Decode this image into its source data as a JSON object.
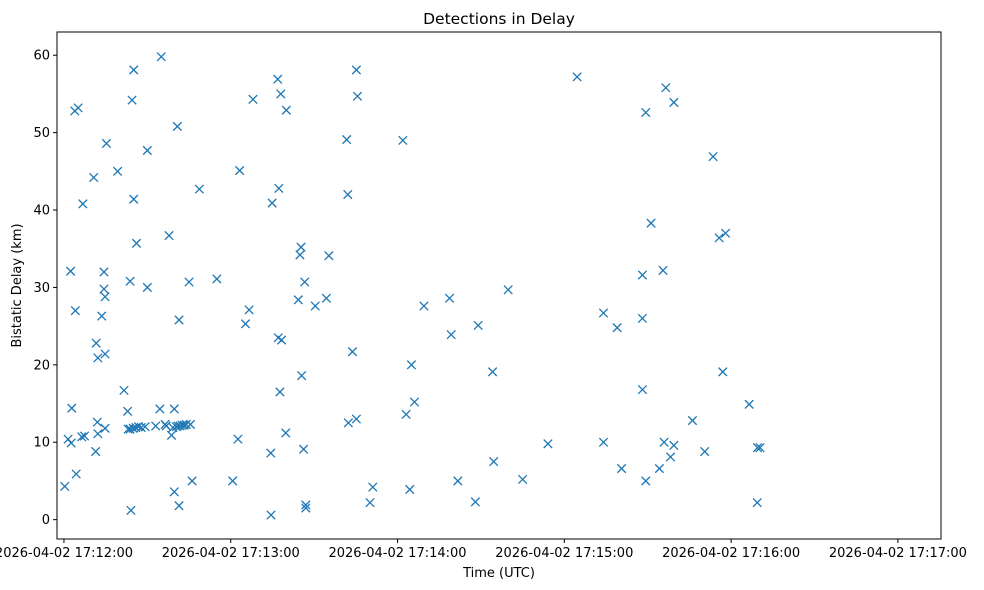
{
  "chart_data": {
    "type": "scatter",
    "title": "Detections in Delay",
    "xlabel": "Time (UTC)",
    "ylabel": "Bistatic Delay (km)",
    "marker": "x",
    "color": "#1f77b4",
    "grid": false,
    "x_ticks": [
      "2026-04-02 17:12:00",
      "2026-04-02 17:13:00",
      "2026-04-02 17:14:00",
      "2026-04-02 17:15:00",
      "2026-04-02 17:16:00",
      "2026-04-02 17:17:00"
    ],
    "x_range": [
      "2026-04-02 17:11:57.5",
      "2026-04-02 17:17:15.5"
    ],
    "ylim": [
      -2.5,
      63.0
    ],
    "yticks": [
      0,
      10,
      20,
      30,
      40,
      50,
      60
    ],
    "series": [
      {
        "points": [
          [
            "2026-04-02 17:12:00.3",
            4.3
          ],
          [
            "2026-04-02 17:12:01.5",
            10.4
          ],
          [
            "2026-04-02 17:12:02.6",
            9.9
          ],
          [
            "2026-04-02 17:12:04.1",
            27.0
          ],
          [
            "2026-04-02 17:12:03.9",
            52.8
          ],
          [
            "2026-04-02 17:12:05.1",
            53.2
          ],
          [
            "2026-04-02 17:12:04.4",
            5.9
          ],
          [
            "2026-04-02 17:12:02.4",
            32.1
          ],
          [
            "2026-04-02 17:12:02.8",
            14.4
          ],
          [
            "2026-04-02 17:12:07.4",
            10.8
          ],
          [
            "2026-04-02 17:12:06.4",
            10.7
          ],
          [
            "2026-04-02 17:12:06.8",
            40.8
          ],
          [
            "2026-04-02 17:12:10.7",
            44.2
          ],
          [
            "2026-04-02 17:12:11.6",
            22.8
          ],
          [
            "2026-04-02 17:12:12.0",
            12.6
          ],
          [
            "2026-04-02 17:12:12.2",
            20.9
          ],
          [
            "2026-04-02 17:12:12.2",
            11.1
          ],
          [
            "2026-04-02 17:12:11.4",
            8.8
          ],
          [
            "2026-04-02 17:12:13.6",
            26.3
          ],
          [
            "2026-04-02 17:12:14.4",
            32.0
          ],
          [
            "2026-04-02 17:12:14.4",
            29.8
          ],
          [
            "2026-04-02 17:12:14.8",
            28.8
          ],
          [
            "2026-04-02 17:12:14.8",
            21.4
          ],
          [
            "2026-04-02 17:12:14.8",
            11.8
          ],
          [
            "2026-04-02 17:12:15.3",
            48.6
          ],
          [
            "2026-04-02 17:12:19.3",
            45.0
          ],
          [
            "2026-04-02 17:12:21.6",
            16.7
          ],
          [
            "2026-04-02 17:12:22.9",
            14.0
          ],
          [
            "2026-04-02 17:12:23.1",
            11.7
          ],
          [
            "2026-04-02 17:12:23.8",
            11.7
          ],
          [
            "2026-04-02 17:12:24.1",
            1.2
          ],
          [
            "2026-04-02 17:12:23.8",
            30.8
          ],
          [
            "2026-04-02 17:12:24.5",
            54.2
          ],
          [
            "2026-04-02 17:12:25.1",
            58.1
          ],
          [
            "2026-04-02 17:12:25.1",
            41.4
          ],
          [
            "2026-04-02 17:12:26.1",
            35.7
          ],
          [
            "2026-04-02 17:12:24.9",
            11.8
          ],
          [
            "2026-04-02 17:12:25.9",
            11.9
          ],
          [
            "2026-04-02 17:12:26.8",
            12.0
          ],
          [
            "2026-04-02 17:12:27.8",
            11.9
          ],
          [
            "2026-04-02 17:12:29.2",
            12.0
          ],
          [
            "2026-04-02 17:12:30.0",
            47.7
          ],
          [
            "2026-04-02 17:12:30.0",
            30.0
          ],
          [
            "2026-04-02 17:12:33.0",
            12.1
          ],
          [
            "2026-04-02 17:12:34.5",
            14.3
          ],
          [
            "2026-04-02 17:12:35.0",
            59.8
          ],
          [
            "2026-04-02 17:12:36.4",
            12.3
          ],
          [
            "2026-04-02 17:12:36.8",
            12.1
          ],
          [
            "2026-04-02 17:12:37.8",
            36.7
          ],
          [
            "2026-04-02 17:12:38.7",
            10.9
          ],
          [
            "2026-04-02 17:12:39.2",
            11.9
          ],
          [
            "2026-04-02 17:12:39.7",
            14.3
          ],
          [
            "2026-04-02 17:12:39.7",
            3.6
          ],
          [
            "2026-04-02 17:12:40.4",
            12.0
          ],
          [
            "2026-04-02 17:12:41.0",
            12.1
          ],
          [
            "2026-04-02 17:12:41.8",
            12.1
          ],
          [
            "2026-04-02 17:12:42.5",
            12.2
          ],
          [
            "2026-04-02 17:12:43.3",
            12.2
          ],
          [
            "2026-04-02 17:12:44.0",
            12.3
          ],
          [
            "2026-04-02 17:12:45.5",
            12.3
          ],
          [
            "2026-04-02 17:12:40.8",
            50.8
          ],
          [
            "2026-04-02 17:12:41.4",
            25.8
          ],
          [
            "2026-04-02 17:12:41.4",
            1.8
          ],
          [
            "2026-04-02 17:12:45.0",
            30.7
          ],
          [
            "2026-04-02 17:12:46.1",
            5.0
          ],
          [
            "2026-04-02 17:12:48.7",
            42.7
          ],
          [
            "2026-04-02 17:12:55.0",
            31.1
          ],
          [
            "2026-04-02 17:13:00.7",
            5.0
          ],
          [
            "2026-04-02 17:13:02.6",
            10.4
          ],
          [
            "2026-04-02 17:13:03.2",
            45.1
          ],
          [
            "2026-04-02 17:13:05.3",
            25.3
          ],
          [
            "2026-04-02 17:13:06.6",
            27.1
          ],
          [
            "2026-04-02 17:13:08.0",
            54.3
          ],
          [
            "2026-04-02 17:13:14.5",
            0.6
          ],
          [
            "2026-04-02 17:13:14.4",
            8.6
          ],
          [
            "2026-04-02 17:13:14.9",
            40.9
          ],
          [
            "2026-04-02 17:13:16.9",
            56.9
          ],
          [
            "2026-04-02 17:13:18.0",
            55.0
          ],
          [
            "2026-04-02 17:13:17.3",
            42.8
          ],
          [
            "2026-04-02 17:13:17.1",
            23.5
          ],
          [
            "2026-04-02 17:13:17.7",
            16.5
          ],
          [
            "2026-04-02 17:13:18.3",
            23.2
          ],
          [
            "2026-04-02 17:13:19.8",
            11.2
          ],
          [
            "2026-04-02 17:13:20.0",
            52.9
          ],
          [
            "2026-04-02 17:13:24.3",
            28.4
          ],
          [
            "2026-04-02 17:13:24.9",
            34.2
          ],
          [
            "2026-04-02 17:13:25.3",
            35.2
          ],
          [
            "2026-04-02 17:13:25.5",
            18.6
          ],
          [
            "2026-04-02 17:13:26.6",
            30.7
          ],
          [
            "2026-04-02 17:13:26.2",
            9.1
          ],
          [
            "2026-04-02 17:13:27.0",
            1.9
          ],
          [
            "2026-04-02 17:13:27.0",
            1.5
          ],
          [
            "2026-04-02 17:13:34.4",
            28.6
          ],
          [
            "2026-04-02 17:13:35.3",
            34.1
          ],
          [
            "2026-04-02 17:13:30.4",
            27.6
          ],
          [
            "2026-04-02 17:13:41.7",
            49.1
          ],
          [
            "2026-04-02 17:13:42.1",
            42.0
          ],
          [
            "2026-04-02 17:13:42.3",
            12.5
          ],
          [
            "2026-04-02 17:13:43.8",
            21.7
          ],
          [
            "2026-04-02 17:13:45.2",
            58.1
          ],
          [
            "2026-04-02 17:13:45.6",
            54.7
          ],
          [
            "2026-04-02 17:13:45.2",
            13.0
          ],
          [
            "2026-04-02 17:13:50.1",
            2.2
          ],
          [
            "2026-04-02 17:13:51.1",
            4.2
          ],
          [
            "2026-04-02 17:14:01.9",
            49.0
          ],
          [
            "2026-04-02 17:14:03.1",
            13.6
          ],
          [
            "2026-04-02 17:14:04.4",
            3.9
          ],
          [
            "2026-04-02 17:14:05.0",
            20.0
          ],
          [
            "2026-04-02 17:14:06.1",
            15.2
          ],
          [
            "2026-04-02 17:14:09.5",
            27.6
          ],
          [
            "2026-04-02 17:14:18.7",
            28.6
          ],
          [
            "2026-04-02 17:14:19.3",
            23.9
          ],
          [
            "2026-04-02 17:14:21.7",
            5.0
          ],
          [
            "2026-04-02 17:14:28.0",
            2.3
          ],
          [
            "2026-04-02 17:14:29.0",
            25.1
          ],
          [
            "2026-04-02 17:14:34.2",
            19.1
          ],
          [
            "2026-04-02 17:14:34.6",
            7.5
          ],
          [
            "2026-04-02 17:14:39.8",
            29.7
          ],
          [
            "2026-04-02 17:14:45.0",
            5.2
          ],
          [
            "2026-04-02 17:14:54.1",
            9.8
          ],
          [
            "2026-04-02 17:15:04.6",
            57.2
          ],
          [
            "2026-04-02 17:15:14.1",
            26.7
          ],
          [
            "2026-04-02 17:15:14.1",
            10.0
          ],
          [
            "2026-04-02 17:15:19.0",
            24.8
          ],
          [
            "2026-04-02 17:15:20.6",
            6.6
          ],
          [
            "2026-04-02 17:15:28.1",
            31.6
          ],
          [
            "2026-04-02 17:15:28.1",
            26.0
          ],
          [
            "2026-04-02 17:15:28.1",
            16.8
          ],
          [
            "2026-04-02 17:15:29.3",
            52.6
          ],
          [
            "2026-04-02 17:15:29.3",
            5.0
          ],
          [
            "2026-04-02 17:15:31.2",
            38.3
          ],
          [
            "2026-04-02 17:15:34.2",
            6.6
          ],
          [
            "2026-04-02 17:15:35.5",
            32.2
          ],
          [
            "2026-04-02 17:15:35.9",
            10.0
          ],
          [
            "2026-04-02 17:15:36.5",
            55.8
          ],
          [
            "2026-04-02 17:15:38.2",
            8.1
          ],
          [
            "2026-04-02 17:15:39.4",
            53.9
          ],
          [
            "2026-04-02 17:15:39.4",
            9.6
          ],
          [
            "2026-04-02 17:15:46.1",
            12.8
          ],
          [
            "2026-04-02 17:15:50.5",
            8.8
          ],
          [
            "2026-04-02 17:15:53.5",
            46.9
          ],
          [
            "2026-04-02 17:15:55.7",
            36.4
          ],
          [
            "2026-04-02 17:15:57.0",
            19.1
          ],
          [
            "2026-04-02 17:15:58.0",
            37.0
          ],
          [
            "2026-04-02 17:16:06.5",
            14.9
          ],
          [
            "2026-04-02 17:16:09.5",
            9.3
          ],
          [
            "2026-04-02 17:16:10.4",
            9.3
          ],
          [
            "2026-04-02 17:16:09.4",
            2.2
          ]
        ]
      }
    ]
  }
}
